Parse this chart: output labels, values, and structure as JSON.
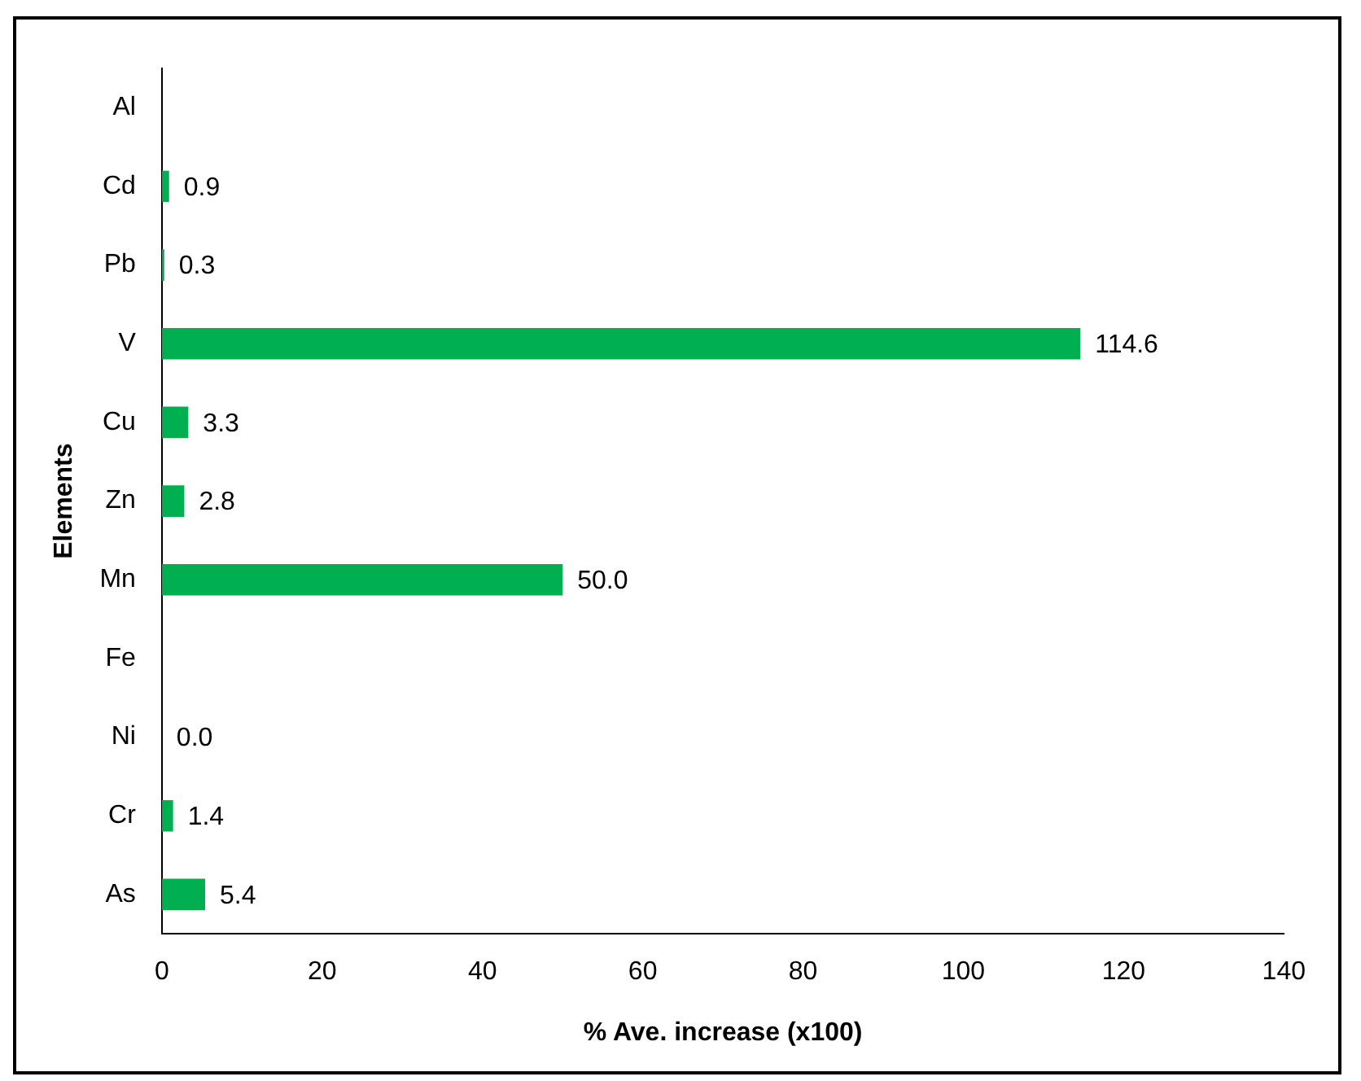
{
  "chart_data": {
    "type": "bar",
    "orientation": "horizontal",
    "xlabel": "% Ave. increase (x100)",
    "ylabel": "Elements",
    "categories": [
      "Al",
      "Cd",
      "Pb",
      "V",
      "Cu",
      "Zn",
      "Mn",
      "Fe",
      "Ni",
      "Cr",
      "As"
    ],
    "values": [
      null,
      0.9,
      0.3,
      114.6,
      3.3,
      2.8,
      50.0,
      null,
      0.0,
      1.4,
      5.4
    ],
    "value_labels": [
      null,
      "0.9",
      "0.3",
      "114.6",
      "3.3",
      "2.8",
      "50.0",
      null,
      "0.0",
      "1.4",
      "5.4"
    ],
    "color": "#00b050",
    "xlim": [
      0,
      140
    ],
    "xticks": [
      0,
      20,
      40,
      60,
      80,
      100,
      120,
      140
    ]
  }
}
